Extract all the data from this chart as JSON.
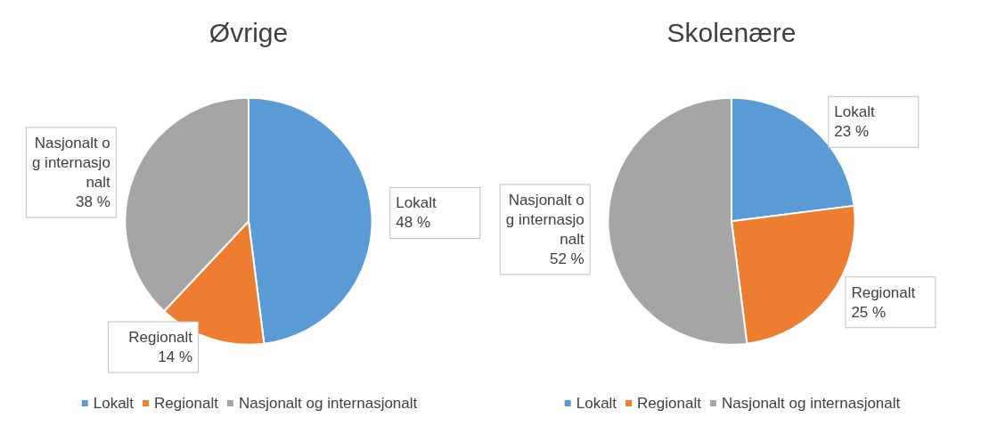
{
  "chart_data": [
    {
      "type": "pie",
      "title": "Øvrige",
      "categories": [
        "Lokalt",
        "Regionalt",
        "Nasjonalt og internasjonalt"
      ],
      "values": [
        48,
        14,
        38
      ],
      "colors": [
        "#5b9bd5",
        "#ed7d31",
        "#a5a5a5"
      ],
      "value_labels": [
        "48 %",
        "14 %",
        "38 %"
      ],
      "legend": "bottom"
    },
    {
      "type": "pie",
      "title": "Skolenære",
      "categories": [
        "Lokalt",
        "Regionalt",
        "Nasjonalt og internasjonalt"
      ],
      "values": [
        23,
        25,
        52
      ],
      "colors": [
        "#5b9bd5",
        "#ed7d31",
        "#a5a5a5"
      ],
      "value_labels": [
        "23 %",
        "25 %",
        "52 %"
      ],
      "legend": "bottom"
    }
  ]
}
